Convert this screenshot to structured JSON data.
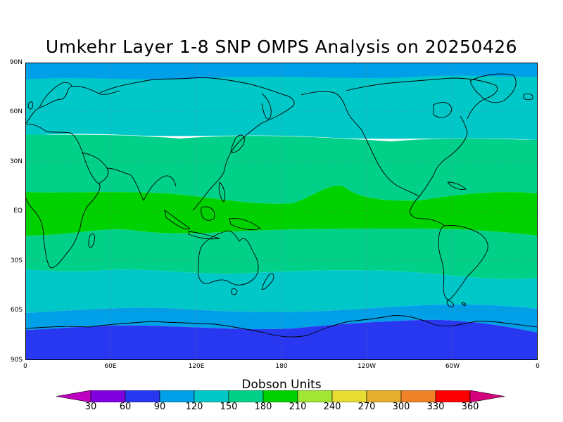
{
  "title": "Umkehr Layer 1-8 SNP OMPS Analysis on 20250426",
  "lat_labels": [
    "90N",
    "60N",
    "30N",
    "EQ",
    "30S",
    "60S",
    "90S"
  ],
  "lon_labels": [
    "0",
    "60E",
    "120E",
    "180",
    "120W",
    "60W",
    "0"
  ],
  "colorbar": {
    "title": "Dobson Units",
    "levels": [
      "30",
      "60",
      "90",
      "120",
      "150",
      "180",
      "210",
      "240",
      "270",
      "300",
      "330",
      "360"
    ],
    "colors": [
      "#c000c0",
      "#8000e0",
      "#2838f0",
      "#00a0e8",
      "#00c8c8",
      "#00d088",
      "#00d200",
      "#a0e632",
      "#e6dc32",
      "#e6af2d",
      "#f08228",
      "#fa0000",
      "#d4007c"
    ]
  },
  "map": {
    "projection": "cylindrical equidistant",
    "lon_range": [
      0,
      360
    ],
    "lat_range": [
      -90,
      90
    ],
    "gridlines": "dotted every 60° longitude / 30° latitude",
    "field_bands": [
      {
        "lat": [
          81,
          90
        ],
        "value_range": "90-120"
      },
      {
        "lat": [
          52,
          81
        ],
        "value_range": "120-150"
      },
      {
        "lat": [
          18,
          52
        ],
        "value_range": "150-180"
      },
      {
        "lat": [
          -12,
          18
        ],
        "value_range": "180-210"
      },
      {
        "lat": [
          -36,
          -12
        ],
        "value_range": "150-180"
      },
      {
        "lat": [
          -58,
          -36
        ],
        "value_range": "120-150"
      },
      {
        "lat": [
          -70,
          -58
        ],
        "value_range": "90-120"
      },
      {
        "lat": [
          -90,
          -70
        ],
        "value_range": "60-90"
      }
    ]
  }
}
